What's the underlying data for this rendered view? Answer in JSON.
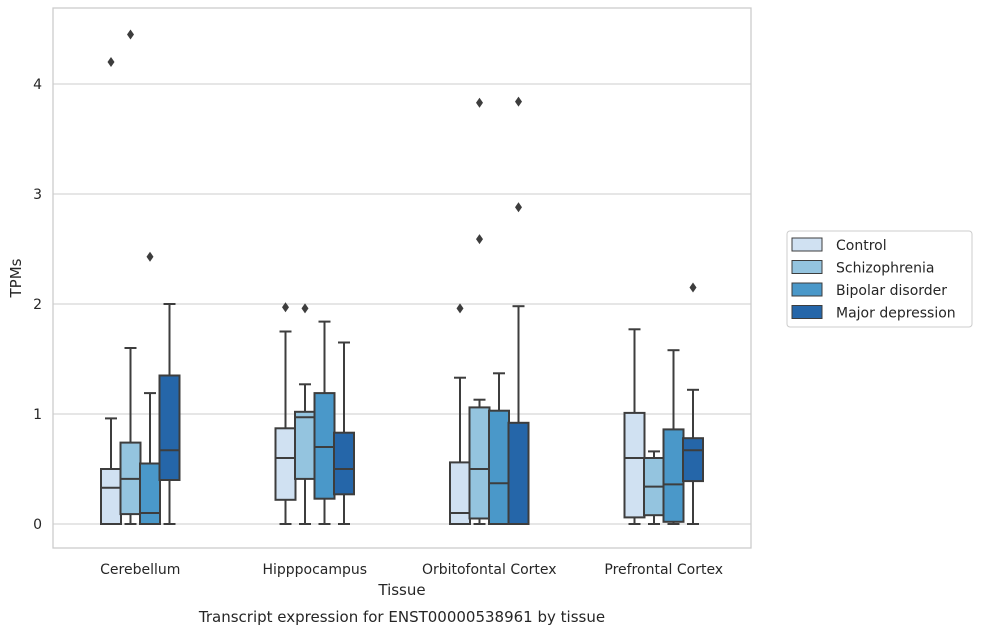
{
  "chart_data": {
    "type": "boxplot",
    "title": "",
    "caption": "Transcript expression for ENST00000538961 by tissue",
    "xlabel": "Tissue",
    "ylabel": "TPMs",
    "ylim": [
      -0.22,
      4.7
    ],
    "yticks": [
      0,
      1,
      2,
      3,
      4
    ],
    "grid": "horizontal",
    "legend_position": "right",
    "categories": [
      "Cerebellum",
      "Hipppocampus",
      "Orbitofontal Cortex",
      "Prefrontal Cortex"
    ],
    "series": [
      {
        "name": "Control",
        "color": "#d0e1f2",
        "boxes": [
          {
            "min": 0.0,
            "q1": 0.0,
            "median": 0.33,
            "q3": 0.5,
            "max": 0.96,
            "outliers": [
              4.2
            ]
          },
          {
            "min": 0.0,
            "q1": 0.22,
            "median": 0.6,
            "q3": 0.87,
            "max": 1.75,
            "outliers": [
              1.97
            ]
          },
          {
            "min": 0.0,
            "q1": 0.0,
            "median": 0.1,
            "q3": 0.56,
            "max": 1.33,
            "outliers": [
              1.96
            ]
          },
          {
            "min": 0.0,
            "q1": 0.06,
            "median": 0.6,
            "q3": 1.01,
            "max": 1.77,
            "outliers": []
          }
        ]
      },
      {
        "name": "Schizophrenia",
        "color": "#94c4df",
        "boxes": [
          {
            "min": 0.0,
            "q1": 0.09,
            "median": 0.41,
            "q3": 0.74,
            "max": 1.6,
            "outliers": [
              4.45
            ]
          },
          {
            "min": 0.0,
            "q1": 0.41,
            "median": 0.97,
            "q3": 1.02,
            "max": 1.27,
            "outliers": [
              1.96
            ]
          },
          {
            "min": 0.0,
            "q1": 0.05,
            "median": 0.5,
            "q3": 1.06,
            "max": 1.13,
            "outliers": [
              2.59,
              3.83
            ]
          },
          {
            "min": 0.0,
            "q1": 0.08,
            "median": 0.34,
            "q3": 0.6,
            "max": 0.66,
            "outliers": []
          }
        ]
      },
      {
        "name": "Bipolar disorder",
        "color": "#4a98c9",
        "boxes": [
          {
            "min": 0.0,
            "q1": 0.0,
            "median": 0.1,
            "q3": 0.55,
            "max": 1.19,
            "outliers": [
              2.43
            ]
          },
          {
            "min": 0.0,
            "q1": 0.23,
            "median": 0.7,
            "q3": 1.19,
            "max": 1.84,
            "outliers": []
          },
          {
            "min": 0.0,
            "q1": 0.0,
            "median": 0.37,
            "q3": 1.03,
            "max": 1.37,
            "outliers": []
          },
          {
            "min": 0.0,
            "q1": 0.02,
            "median": 0.36,
            "q3": 0.86,
            "max": 1.58,
            "outliers": []
          }
        ]
      },
      {
        "name": "Major depression",
        "color": "#2566a9",
        "boxes": [
          {
            "min": 0.0,
            "q1": 0.4,
            "median": 0.67,
            "q3": 1.35,
            "max": 2.0,
            "outliers": []
          },
          {
            "min": 0.0,
            "q1": 0.27,
            "median": 0.5,
            "q3": 0.83,
            "max": 1.65,
            "outliers": []
          },
          {
            "min": 0.0,
            "q1": 0.0,
            "median": 0.0,
            "q3": 0.92,
            "max": 1.98,
            "outliers": [
              2.88,
              3.84
            ]
          },
          {
            "min": 0.0,
            "q1": 0.39,
            "median": 0.67,
            "q3": 0.78,
            "max": 1.22,
            "outliers": [
              2.15
            ]
          }
        ]
      }
    ]
  }
}
